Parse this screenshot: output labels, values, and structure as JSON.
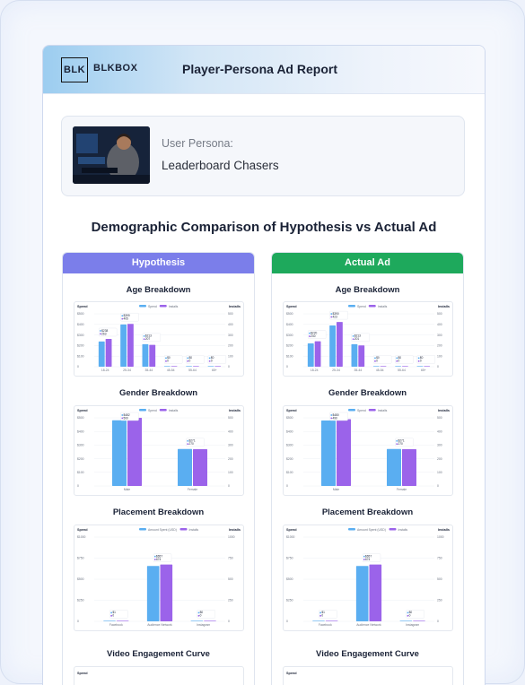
{
  "app": {
    "logo_mark": "BLK",
    "logo_text": "BLKBOX",
    "title": "Player-Persona Ad Report"
  },
  "persona": {
    "label": "User Persona:",
    "name": "Leaderboard Chasers"
  },
  "section_title": "Demographic Comparison of Hypothesis vs Actual Ad",
  "colors": {
    "hypothesis_header": "#7b7eea",
    "actual_header": "#1ea95c",
    "spend": "#5aaef1",
    "installs": "#9b63ea"
  },
  "columns": [
    {
      "key": "hypothesis",
      "label": "Hypothesis"
    },
    {
      "key": "actual",
      "label": "Actual Ad"
    }
  ],
  "chart_data": [
    {
      "id": "hyp-age",
      "type": "bar",
      "title": "Age Breakdown",
      "ylabel_left": "Spend",
      "ylabel_right": "Installs",
      "legend": [
        "Spend",
        "Installs"
      ],
      "categories": [
        "18-24",
        "25-34",
        "35-44",
        "45-54",
        "55-64",
        "65+"
      ],
      "left_ticks": [
        "$500",
        "$400",
        "$300",
        "$200",
        "$100",
        "0"
      ],
      "right_ticks": [
        "500",
        "400",
        "300",
        "200",
        "100",
        "0"
      ],
      "ylim": [
        0,
        500
      ],
      "series": [
        {
          "name": "Spend",
          "values": [
            238,
            399,
            213,
            0,
            0,
            0
          ]
        },
        {
          "name": "Installs",
          "values": [
            263,
            405,
            207,
            0,
            0,
            0
          ]
        }
      ],
      "labels": [
        [
          "$238",
          "263"
        ],
        [
          "$399",
          "405"
        ],
        [
          "$213",
          "207"
        ],
        [
          "$0",
          "0"
        ],
        [
          "$0",
          "0"
        ],
        [
          "$0",
          "0"
        ]
      ]
    },
    {
      "id": "act-age",
      "type": "bar",
      "title": "Age Breakdown",
      "ylabel_left": "Spend",
      "ylabel_right": "Installs",
      "legend": [
        "Spend",
        "Installs"
      ],
      "categories": [
        "18-24",
        "25-34",
        "35-44",
        "45-54",
        "55-64",
        "65+"
      ],
      "left_ticks": [
        "$500",
        "$400",
        "$300",
        "$200",
        "$100",
        "0"
      ],
      "right_ticks": [
        "500",
        "400",
        "300",
        "200",
        "100",
        "0"
      ],
      "ylim": [
        0,
        500
      ],
      "series": [
        {
          "name": "Spend",
          "values": [
            220,
            390,
            213,
            0,
            0,
            0
          ]
        },
        {
          "name": "Installs",
          "values": [
            240,
            423,
            201,
            0,
            0,
            0
          ]
        }
      ],
      "labels": [
        [
          "$220",
          "240"
        ],
        [
          "$390",
          "423"
        ],
        [
          "$213",
          "201"
        ],
        [
          "$0",
          "0"
        ],
        [
          "$0",
          "0"
        ],
        [
          "$0",
          "0"
        ]
      ]
    },
    {
      "id": "hyp-gender",
      "type": "bar",
      "title": "Gender Breakdown",
      "ylabel_left": "Spend",
      "ylabel_right": "Installs",
      "legend": [
        "Spend",
        "Installs"
      ],
      "categories": [
        "Male",
        "Female"
      ],
      "left_ticks": [
        "$500",
        "$400",
        "$300",
        "$200",
        "$100",
        "0"
      ],
      "right_ticks": [
        "500",
        "400",
        "300",
        "200",
        "100",
        "0"
      ],
      "ylim": [
        0,
        500
      ],
      "series": [
        {
          "name": "Spend",
          "values": [
            482,
            271
          ]
        },
        {
          "name": "Installs",
          "values": [
            500,
            270
          ]
        }
      ],
      "labels": [
        [
          "$482",
          "500"
        ],
        [
          "$271",
          "270"
        ]
      ]
    },
    {
      "id": "act-gender",
      "type": "bar",
      "title": "Gender Breakdown",
      "ylabel_left": "Spend",
      "ylabel_right": "Installs",
      "legend": [
        "Spend",
        "Installs"
      ],
      "categories": [
        "Male",
        "Female"
      ],
      "left_ticks": [
        "$500",
        "$400",
        "$300",
        "$200",
        "$100",
        "0"
      ],
      "right_ticks": [
        "500",
        "400",
        "300",
        "200",
        "100",
        "0"
      ],
      "ylim": [
        0,
        500
      ],
      "series": [
        {
          "name": "Spend",
          "values": [
            480,
            271
          ]
        },
        {
          "name": "Installs",
          "values": [
            490,
            270
          ]
        }
      ],
      "labels": [
        [
          "$480",
          "490"
        ],
        [
          "$271",
          "270"
        ]
      ]
    },
    {
      "id": "hyp-placement",
      "type": "bar",
      "title": "Placement Breakdown",
      "ylabel_left": "Spend",
      "ylabel_right": "Installs",
      "legend": [
        "Amount Spent (USD)",
        "Installs"
      ],
      "categories": [
        "Facebook",
        "Audience Network",
        "Instagram"
      ],
      "left_ticks": [
        "$1000",
        "$750",
        "$500",
        "$250",
        "0"
      ],
      "right_ticks": [
        "1000",
        "750",
        "500",
        "250",
        "0"
      ],
      "ylim": [
        0,
        1000
      ],
      "series": [
        {
          "name": "Amount Spent (USD)",
          "values": [
            1,
            657,
            0
          ]
        },
        {
          "name": "Installs",
          "values": [
            0,
            674,
            0
          ]
        }
      ],
      "labels": [
        [
          "$1",
          "0"
        ],
        [
          "$657",
          "674"
        ],
        [
          "$0",
          "0"
        ]
      ]
    },
    {
      "id": "act-placement",
      "type": "bar",
      "title": "Placement Breakdown",
      "ylabel_left": "Spend",
      "ylabel_right": "Installs",
      "legend": [
        "Amount Spent (USD)",
        "Installs"
      ],
      "categories": [
        "Facebook",
        "Audience Network",
        "Instagram"
      ],
      "left_ticks": [
        "$1000",
        "$750",
        "$500",
        "$250",
        "0"
      ],
      "right_ticks": [
        "1000",
        "750",
        "500",
        "250",
        "0"
      ],
      "ylim": [
        0,
        1000
      ],
      "series": [
        {
          "name": "Amount Spent (USD)",
          "values": [
            1,
            657,
            0
          ]
        },
        {
          "name": "Installs",
          "values": [
            0,
            674,
            0
          ]
        }
      ],
      "labels": [
        [
          "$1",
          "0"
        ],
        [
          "$657",
          "674"
        ],
        [
          "$0",
          "0"
        ]
      ]
    },
    {
      "id": "hyp-video",
      "type": "line",
      "title": "Video Engagement Curve",
      "ylabel_left": "Spend"
    },
    {
      "id": "act-video",
      "type": "line",
      "title": "Video Engagement Curve",
      "ylabel_left": "Spend"
    }
  ]
}
